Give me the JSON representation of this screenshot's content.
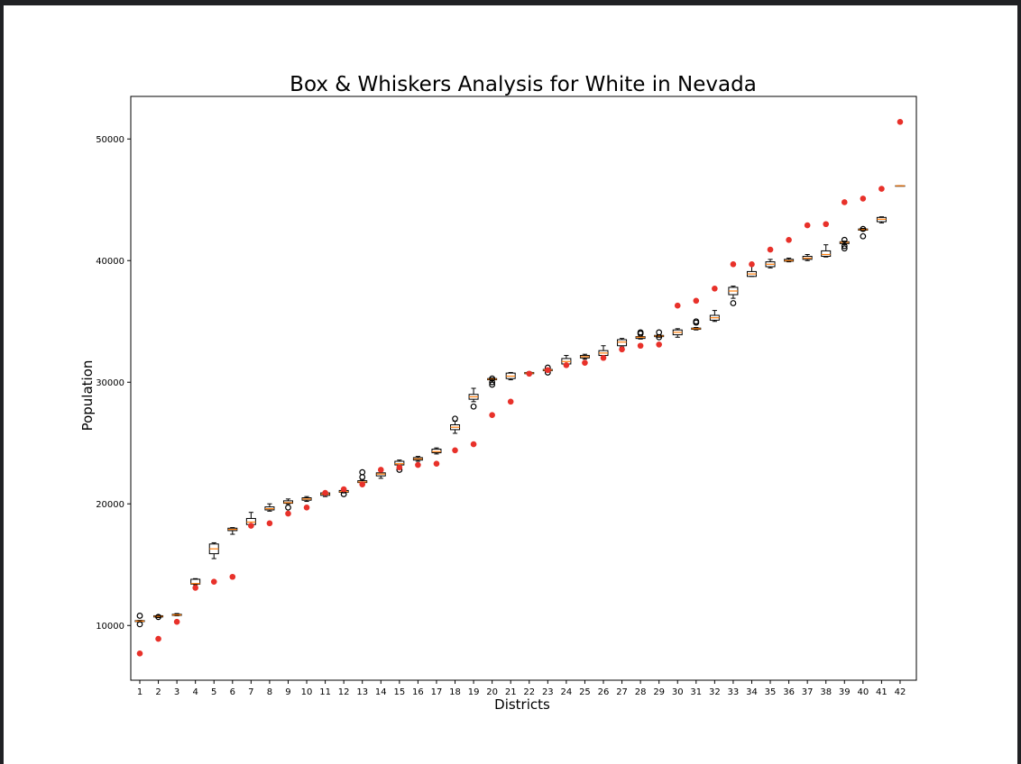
{
  "chart_data": {
    "type": "box",
    "title": "Box & Whiskers Analysis for White in Nevada",
    "xlabel": "Districts",
    "ylabel": "Population",
    "ylim": [
      5500,
      53500
    ],
    "y_ticks": [
      10000,
      20000,
      30000,
      40000,
      50000
    ],
    "grid": false,
    "categories": [
      "1",
      "2",
      "3",
      "4",
      "5",
      "6",
      "7",
      "8",
      "9",
      "10",
      "11",
      "12",
      "13",
      "14",
      "15",
      "16",
      "17",
      "18",
      "19",
      "20",
      "21",
      "22",
      "23",
      "24",
      "25",
      "26",
      "27",
      "28",
      "29",
      "30",
      "31",
      "32",
      "33",
      "34",
      "35",
      "36",
      "37",
      "38",
      "39",
      "40",
      "41",
      "42"
    ],
    "colors": {
      "box_edge": "#000000",
      "median": "#ff7f0e",
      "observed_point": "#e8312a",
      "outlier_edge": "#000000",
      "frame_background": "#202124"
    },
    "boxes": [
      {
        "district": "1",
        "whislo": 10300,
        "q1": 10320,
        "median": 10360,
        "q3": 10400,
        "whishi": 10420,
        "fliers": [
          10100,
          10800
        ]
      },
      {
        "district": "2",
        "whislo": 10650,
        "q1": 10700,
        "median": 10750,
        "q3": 10800,
        "whishi": 10850,
        "fliers": [
          10700
        ]
      },
      {
        "district": "3",
        "whislo": 10800,
        "q1": 10830,
        "median": 10870,
        "q3": 10920,
        "whishi": 10980,
        "fliers": []
      },
      {
        "district": "4",
        "whislo": 13350,
        "q1": 13400,
        "median": 13450,
        "q3": 13800,
        "whishi": 13850,
        "fliers": []
      },
      {
        "district": "5",
        "whislo": 15500,
        "q1": 15900,
        "median": 16300,
        "q3": 16700,
        "whishi": 16800,
        "fliers": []
      },
      {
        "district": "6",
        "whislo": 17500,
        "q1": 17800,
        "median": 17900,
        "q3": 18000,
        "whishi": 18050,
        "fliers": []
      },
      {
        "district": "7",
        "whislo": 18200,
        "q1": 18300,
        "median": 18500,
        "q3": 18800,
        "whishi": 19300,
        "fliers": []
      },
      {
        "district": "8",
        "whislo": 19400,
        "q1": 19500,
        "median": 19600,
        "q3": 19750,
        "whishi": 20000,
        "fliers": []
      },
      {
        "district": "9",
        "whislo": 20000,
        "q1": 20050,
        "median": 20100,
        "q3": 20250,
        "whishi": 20400,
        "fliers": [
          19700
        ]
      },
      {
        "district": "10",
        "whislo": 20200,
        "q1": 20300,
        "median": 20400,
        "q3": 20500,
        "whishi": 20600,
        "fliers": []
      },
      {
        "district": "11",
        "whislo": 20600,
        "q1": 20700,
        "median": 20800,
        "q3": 20900,
        "whishi": 21000,
        "fliers": []
      },
      {
        "district": "12",
        "whislo": 20900,
        "q1": 20950,
        "median": 21000,
        "q3": 21100,
        "whishi": 21200,
        "fliers": [
          20800
        ]
      },
      {
        "district": "13",
        "whislo": 21700,
        "q1": 21750,
        "median": 21800,
        "q3": 21900,
        "whishi": 22000,
        "fliers": [
          22200,
          22600
        ]
      },
      {
        "district": "14",
        "whislo": 22100,
        "q1": 22300,
        "median": 22450,
        "q3": 22550,
        "whishi": 22700,
        "fliers": []
      },
      {
        "district": "15",
        "whislo": 23100,
        "q1": 23200,
        "median": 23300,
        "q3": 23500,
        "whishi": 23600,
        "fliers": [
          22800
        ]
      },
      {
        "district": "16",
        "whislo": 23500,
        "q1": 23600,
        "median": 23700,
        "q3": 23800,
        "whishi": 23900,
        "fliers": []
      },
      {
        "district": "17",
        "whislo": 24100,
        "q1": 24200,
        "median": 24300,
        "q3": 24500,
        "whishi": 24600,
        "fliers": []
      },
      {
        "district": "18",
        "whislo": 25800,
        "q1": 26100,
        "median": 26300,
        "q3": 26500,
        "whishi": 26800,
        "fliers": [
          27000
        ]
      },
      {
        "district": "19",
        "whislo": 28400,
        "q1": 28600,
        "median": 28800,
        "q3": 29000,
        "whishi": 29500,
        "fliers": [
          28000
        ]
      },
      {
        "district": "20",
        "whislo": 30150,
        "q1": 30200,
        "median": 30250,
        "q3": 30300,
        "whishi": 30350,
        "fliers": [
          29800,
          30000,
          30300
        ]
      },
      {
        "district": "21",
        "whislo": 30200,
        "q1": 30300,
        "median": 30500,
        "q3": 30750,
        "whishi": 30800,
        "fliers": []
      },
      {
        "district": "22",
        "whislo": 30650,
        "q1": 30700,
        "median": 30750,
        "q3": 30800,
        "whishi": 30850,
        "fliers": []
      },
      {
        "district": "23",
        "whislo": 30900,
        "q1": 30950,
        "median": 31000,
        "q3": 31050,
        "whishi": 31100,
        "fliers": [
          30800,
          31200
        ]
      },
      {
        "district": "24",
        "whislo": 31300,
        "q1": 31500,
        "median": 31700,
        "q3": 31950,
        "whishi": 32200,
        "fliers": []
      },
      {
        "district": "25",
        "whislo": 31900,
        "q1": 32000,
        "median": 32100,
        "q3": 32200,
        "whishi": 32300,
        "fliers": []
      },
      {
        "district": "26",
        "whislo": 32000,
        "q1": 32200,
        "median": 32400,
        "q3": 32600,
        "whishi": 33000,
        "fliers": []
      },
      {
        "district": "27",
        "whislo": 32900,
        "q1": 33000,
        "median": 33300,
        "q3": 33500,
        "whishi": 33600,
        "fliers": []
      },
      {
        "district": "28",
        "whislo": 33550,
        "q1": 33600,
        "median": 33700,
        "q3": 33750,
        "whishi": 33800,
        "fliers": [
          34000,
          34100
        ]
      },
      {
        "district": "29",
        "whislo": 33700,
        "q1": 33750,
        "median": 33800,
        "q3": 33850,
        "whishi": 33900,
        "fliers": [
          34100,
          33700
        ]
      },
      {
        "district": "30",
        "whislo": 33700,
        "q1": 33900,
        "median": 34100,
        "q3": 34300,
        "whishi": 34400,
        "fliers": []
      },
      {
        "district": "31",
        "whislo": 34300,
        "q1": 34350,
        "median": 34400,
        "q3": 34450,
        "whishi": 34500,
        "fliers": [
          35000,
          34900
        ]
      },
      {
        "district": "32",
        "whislo": 35000,
        "q1": 35100,
        "median": 35300,
        "q3": 35500,
        "whishi": 35900,
        "fliers": []
      },
      {
        "district": "33",
        "whislo": 36900,
        "q1": 37200,
        "median": 37500,
        "q3": 37800,
        "whishi": 37900,
        "fliers": [
          36500
        ]
      },
      {
        "district": "34",
        "whislo": 38700,
        "q1": 38700,
        "median": 38900,
        "q3": 39100,
        "whishi": 39600,
        "fliers": []
      },
      {
        "district": "35",
        "whislo": 39400,
        "q1": 39500,
        "median": 39700,
        "q3": 39900,
        "whishi": 40100,
        "fliers": []
      },
      {
        "district": "36",
        "whislo": 39900,
        "q1": 39950,
        "median": 40000,
        "q3": 40100,
        "whishi": 40200,
        "fliers": []
      },
      {
        "district": "37",
        "whislo": 40000,
        "q1": 40100,
        "median": 40200,
        "q3": 40350,
        "whishi": 40500,
        "fliers": []
      },
      {
        "district": "38",
        "whislo": 40300,
        "q1": 40350,
        "median": 40500,
        "q3": 40800,
        "whishi": 41300,
        "fliers": []
      },
      {
        "district": "39",
        "whislo": 41300,
        "q1": 41400,
        "median": 41500,
        "q3": 41550,
        "whishi": 41600,
        "fliers": [
          41000,
          41200,
          41700
        ]
      },
      {
        "district": "40",
        "whislo": 42450,
        "q1": 42500,
        "median": 42550,
        "q3": 42600,
        "whishi": 42650,
        "fliers": [
          42000,
          42600
        ]
      },
      {
        "district": "41",
        "whislo": 43100,
        "q1": 43200,
        "median": 43400,
        "q3": 43550,
        "whishi": 43600,
        "fliers": []
      },
      {
        "district": "42",
        "whislo": 46150,
        "q1": 46150,
        "median": 46150,
        "q3": 46150,
        "whishi": 46150,
        "fliers": []
      }
    ],
    "points": [
      7700,
      8900,
      10300,
      13100,
      13600,
      14000,
      18200,
      18400,
      19200,
      19700,
      20900,
      21200,
      21600,
      22800,
      23000,
      23200,
      23300,
      24400,
      24900,
      27300,
      28400,
      30700,
      31000,
      31400,
      31600,
      32000,
      32700,
      33000,
      33100,
      36300,
      36700,
      37700,
      39700,
      39700,
      40900,
      41700,
      42900,
      43000,
      44800,
      45100,
      45900,
      51400
    ]
  }
}
